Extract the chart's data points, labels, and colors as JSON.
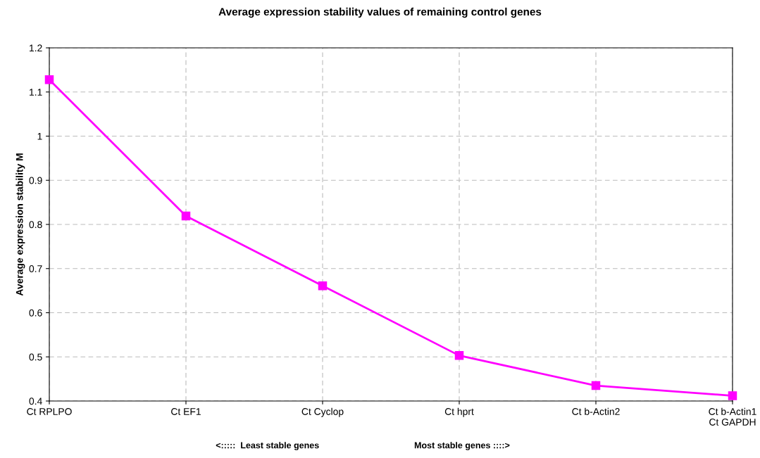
{
  "chart_data": {
    "type": "line",
    "title": "Average expression stability values of remaining control genes",
    "ylabel": "Average expression stability M",
    "categories": [
      "Ct RPLPO",
      "Ct EF1",
      "Ct Cyclop",
      "Ct hprt",
      "Ct b-Actin2",
      "Ct b-Actin1\nCt GAPDH"
    ],
    "series": [
      {
        "color": "#ff00ff",
        "values": [
          1.128,
          0.819,
          0.661,
          0.503,
          0.435,
          0.412
        ]
      }
    ],
    "ylim": [
      0.4,
      1.2
    ],
    "yticks": [
      0.4,
      0.5,
      0.6,
      0.7,
      0.8,
      0.9,
      1,
      1.1,
      1.2
    ],
    "grid": true,
    "marker": "square",
    "line_style": "solid",
    "legend": false,
    "annotations": [
      "<:::::  Least stable genes",
      "Most stable genes ::::>"
    ]
  }
}
